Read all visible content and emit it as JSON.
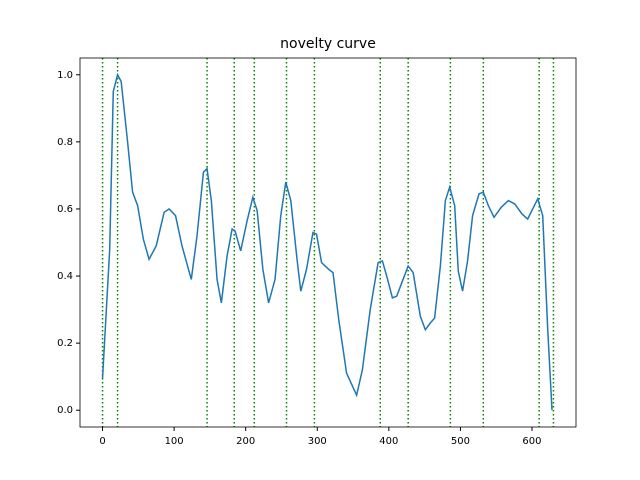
{
  "chart_data": {
    "type": "line",
    "title": "novelty curve",
    "x": [
      0,
      10,
      15,
      21,
      26,
      35,
      42,
      49,
      57,
      65,
      75,
      86,
      93,
      102,
      111,
      124,
      132,
      141,
      146,
      152,
      160,
      166,
      174,
      181,
      185,
      193,
      202,
      210,
      216,
      224,
      232,
      241,
      249,
      256,
      263,
      272,
      277,
      285,
      294,
      299,
      306,
      316,
      322,
      330,
      341,
      355,
      363,
      374,
      385,
      391,
      397,
      405,
      411,
      419,
      427,
      434,
      444,
      451,
      458,
      464,
      472,
      479,
      485,
      492,
      497,
      503,
      510,
      517,
      526,
      532,
      539,
      547,
      557,
      567,
      576,
      586,
      594,
      601,
      608,
      615,
      622,
      628
    ],
    "series": [
      {
        "color": "#1f77b4",
        "values": [
          0.095,
          0.48,
          0.95,
          1.0,
          0.98,
          0.8,
          0.65,
          0.61,
          0.51,
          0.45,
          0.49,
          0.59,
          0.6,
          0.58,
          0.49,
          0.39,
          0.52,
          0.71,
          0.72,
          0.625,
          0.39,
          0.32,
          0.46,
          0.54,
          0.535,
          0.475,
          0.565,
          0.635,
          0.595,
          0.42,
          0.32,
          0.39,
          0.58,
          0.68,
          0.625,
          0.445,
          0.355,
          0.42,
          0.53,
          0.525,
          0.44,
          0.42,
          0.41,
          0.27,
          0.11,
          0.045,
          0.12,
          0.3,
          0.44,
          0.445,
          0.4,
          0.335,
          0.34,
          0.385,
          0.43,
          0.41,
          0.28,
          0.24,
          0.26,
          0.275,
          0.43,
          0.625,
          0.665,
          0.61,
          0.415,
          0.355,
          0.445,
          0.58,
          0.645,
          0.65,
          0.61,
          0.575,
          0.605,
          0.625,
          0.615,
          0.585,
          0.57,
          0.6,
          0.63,
          0.58,
          0.24,
          0.0
        ]
      }
    ],
    "vlines": {
      "color": "green",
      "values": [
        0,
        21,
        146,
        184,
        212,
        257,
        296,
        388,
        427,
        486,
        532,
        610,
        630
      ]
    },
    "xlim": [
      -31.5,
      661.5
    ],
    "ylim": [
      -0.05,
      1.05
    ],
    "xticks": [
      0,
      100,
      200,
      300,
      400,
      500,
      600
    ],
    "yticks": [
      {
        "value": 0,
        "label": "0.0"
      },
      {
        "value": 0.2,
        "label": "0.2"
      },
      {
        "value": 0.4,
        "label": "0.4"
      },
      {
        "value": 0.6,
        "label": "0.6"
      },
      {
        "value": 0.8,
        "label": "0.8"
      },
      {
        "value": 1,
        "label": "1.0"
      }
    ]
  }
}
